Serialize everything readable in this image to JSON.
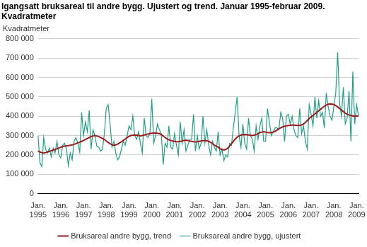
{
  "chart_data": {
    "type": "line",
    "title": [
      "Igangsatt bruksareal til andre bygg. Ujustert og trend. Januar 1995-februar 2009.",
      "Kvadratmeter"
    ],
    "y_label": "Kvadratmeter",
    "categories": [
      "Jan. 1995",
      null,
      null,
      null,
      null,
      null,
      null,
      null,
      null,
      null,
      null,
      null,
      "Jan. 1996",
      null,
      null,
      null,
      null,
      null,
      null,
      null,
      null,
      null,
      null,
      null,
      "Jan. 1997",
      null,
      null,
      null,
      null,
      null,
      null,
      null,
      null,
      null,
      null,
      null,
      "Jan. 1998",
      null,
      null,
      null,
      null,
      null,
      null,
      null,
      null,
      null,
      null,
      null,
      "Jan. 1999",
      null,
      null,
      null,
      null,
      null,
      null,
      null,
      null,
      null,
      null,
      null,
      "Jan. 2000",
      null,
      null,
      null,
      null,
      null,
      null,
      null,
      null,
      null,
      null,
      null,
      "Jan. 2001",
      null,
      null,
      null,
      null,
      null,
      null,
      null,
      null,
      null,
      null,
      null,
      "Jan. 2002",
      null,
      null,
      null,
      null,
      null,
      null,
      null,
      null,
      null,
      null,
      null,
      "Jan. 2003",
      null,
      null,
      null,
      null,
      null,
      null,
      null,
      null,
      null,
      null,
      null,
      "Jan. 2004",
      null,
      null,
      null,
      null,
      null,
      null,
      null,
      null,
      null,
      null,
      null,
      "Jan. 2005",
      null,
      null,
      null,
      null,
      null,
      null,
      null,
      null,
      null,
      null,
      null,
      "Jan. 2006",
      null,
      null,
      null,
      null,
      null,
      null,
      null,
      null,
      null,
      null,
      null,
      "Jan. 2007",
      null,
      null,
      null,
      null,
      null,
      null,
      null,
      null,
      null,
      null,
      null,
      "Jan. 2008",
      null,
      null,
      null,
      null,
      null,
      null,
      null,
      null,
      null,
      null,
      null,
      "Jan. 2009",
      null
    ],
    "series": [
      {
        "name": "Bruksareal andre bygg, ujustert",
        "color": "#1f9e89",
        "values": [
          300000,
          160000,
          140000,
          290000,
          230000,
          210000,
          235000,
          190000,
          235000,
          210000,
          270000,
          200000,
          185000,
          250000,
          260000,
          230000,
          145000,
          210000,
          175000,
          270000,
          290000,
          260000,
          215000,
          420000,
          300000,
          370000,
          320000,
          430000,
          230000,
          330000,
          300000,
          245000,
          240000,
          220000,
          230000,
          310000,
          440000,
          460000,
          360000,
          240000,
          270000,
          210000,
          175000,
          190000,
          230000,
          270000,
          250000,
          300000,
          350000,
          330000,
          400000,
          300000,
          280000,
          320000,
          260000,
          210000,
          390000,
          300000,
          290000,
          310000,
          490000,
          260000,
          300000,
          360000,
          330000,
          310000,
          150000,
          260000,
          240000,
          350000,
          240000,
          230000,
          310000,
          250000,
          200000,
          370000,
          260000,
          330000,
          220000,
          250000,
          280000,
          280000,
          410000,
          220000,
          300000,
          230000,
          260000,
          400000,
          260000,
          330000,
          250000,
          200000,
          270000,
          240000,
          220000,
          320000,
          200000,
          230000,
          170000,
          200000,
          190000,
          260000,
          250000,
          340000,
          420000,
          500000,
          300000,
          240000,
          360000,
          260000,
          230000,
          390000,
          300000,
          280000,
          220000,
          350000,
          280000,
          350000,
          390000,
          270000,
          270000,
          440000,
          370000,
          300000,
          320000,
          340000,
          340000,
          330000,
          420000,
          390000,
          270000,
          400000,
          410000,
          360000,
          400000,
          330000,
          300000,
          290000,
          440000,
          310000,
          350000,
          270000,
          230000,
          460000,
          410000,
          350000,
          500000,
          390000,
          480000,
          400000,
          420000,
          340000,
          520000,
          450000,
          400000,
          380000,
          450000,
          520000,
          730000,
          470000,
          400000,
          550000,
          360000,
          390000,
          530000,
          270000,
          630000,
          360000,
          460000,
          400000
        ]
      },
      {
        "name": "Bruksareal andre bygg, trend",
        "color": "#9e1a1a",
        "values": [
          220000,
          215000,
          212000,
          210000,
          212000,
          215000,
          218000,
          222000,
          225000,
          228000,
          232000,
          236000,
          240000,
          243000,
          245000,
          247000,
          248000,
          250000,
          252000,
          255000,
          258000,
          262000,
          266000,
          270000,
          275000,
          280000,
          285000,
          290000,
          295000,
          298000,
          300000,
          298000,
          295000,
          290000,
          285000,
          280000,
          272000,
          265000,
          258000,
          252000,
          250000,
          252000,
          256000,
          262000,
          268000,
          275000,
          282000,
          290000,
          296000,
          300000,
          302000,
          303000,
          302000,
          300000,
          298000,
          300000,
          303000,
          306000,
          308000,
          310000,
          312000,
          313000,
          313000,
          312000,
          310000,
          305000,
          298000,
          290000,
          283000,
          278000,
          275000,
          272000,
          270000,
          268000,
          268000,
          270000,
          272000,
          275000,
          276000,
          275000,
          272000,
          270000,
          268000,
          267000,
          268000,
          270000,
          272000,
          274000,
          275000,
          273000,
          270000,
          265000,
          258000,
          250000,
          245000,
          240000,
          232000,
          228000,
          225000,
          228000,
          235000,
          245000,
          258000,
          270000,
          282000,
          292000,
          298000,
          302000,
          305000,
          306000,
          305000,
          303000,
          302000,
          300000,
          302000,
          305000,
          310000,
          315000,
          318000,
          320000,
          318000,
          316000,
          315000,
          316000,
          318000,
          322000,
          328000,
          335000,
          340000,
          345000,
          348000,
          350000,
          352000,
          353000,
          354000,
          354000,
          353000,
          352000,
          352000,
          355000,
          360000,
          368000,
          378000,
          388000,
          396000,
          404000,
          412000,
          420000,
          428000,
          436000,
          444000,
          452000,
          458000,
          462000,
          464000,
          463000,
          460000,
          455000,
          448000,
          440000,
          432000,
          424000,
          416000,
          410000,
          406000,
          404000,
          402000,
          400000,
          402000,
          400000
        ]
      }
    ],
    "ylim": [
      0,
      800000
    ],
    "yticks": [
      0,
      {
        "value": 100000,
        "label": "100 000"
      },
      {
        "value": 200000,
        "label": "200 000"
      },
      {
        "value": 300000,
        "label": "300 000"
      },
      {
        "value": 400000,
        "label": "400 000"
      },
      {
        "value": 500000,
        "label": "500 000"
      },
      {
        "value": 600000,
        "label": "600 000"
      },
      {
        "value": 700000,
        "label": "700 000"
      },
      {
        "value": 800000,
        "label": "800 000"
      }
    ],
    "grid": true,
    "legend": "bottom"
  }
}
